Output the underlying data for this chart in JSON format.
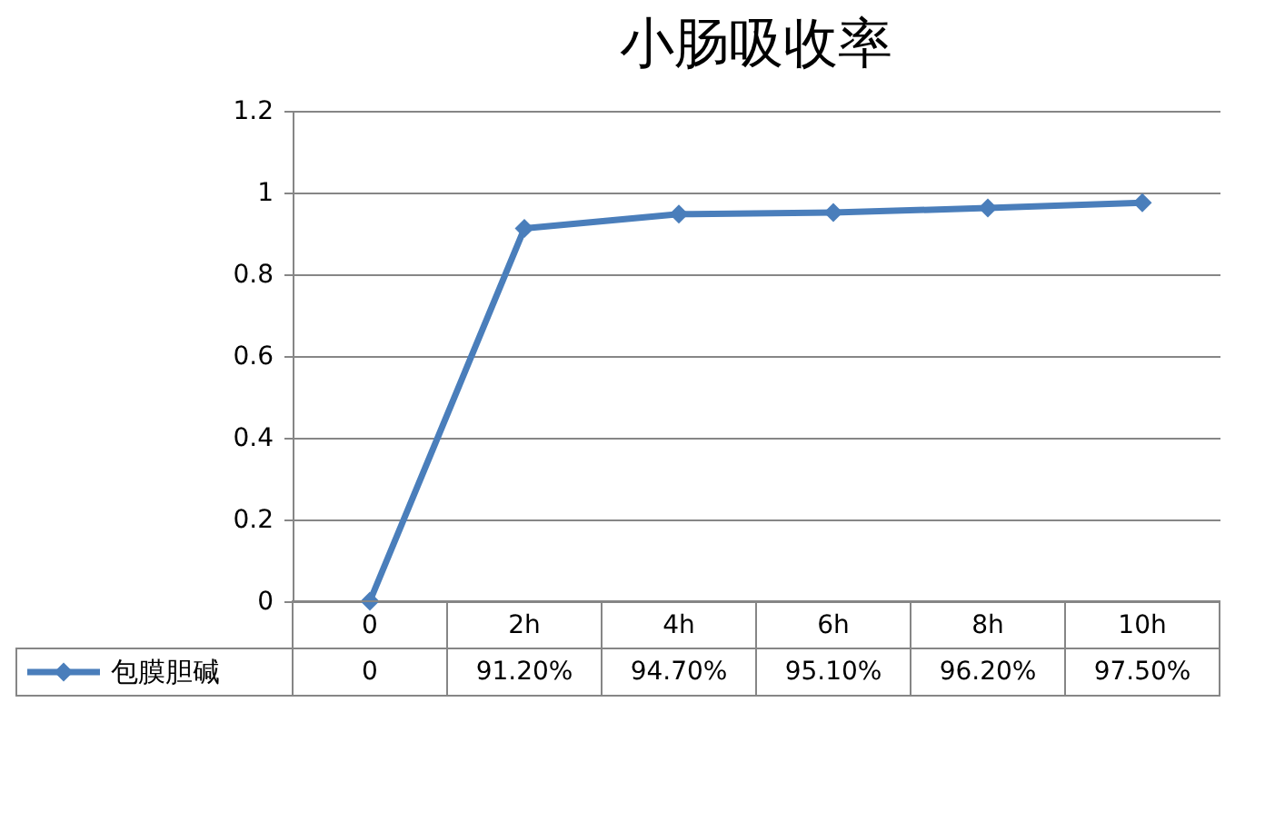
{
  "chart_data": {
    "type": "line",
    "title": "小肠吸收率",
    "categories": [
      "0",
      "2h",
      "4h",
      "6h",
      "8h",
      "10h"
    ],
    "series": [
      {
        "name": "包膜胆碱",
        "color": "#4a7ebb",
        "values": [
          0,
          0.912,
          0.947,
          0.951,
          0.962,
          0.975
        ],
        "value_labels": [
          "0",
          "91.20%",
          "94.70%",
          "95.10%",
          "96.20%",
          "97.50%"
        ]
      }
    ],
    "ylim": [
      0,
      1.2
    ],
    "yticks": [
      0,
      0.2,
      0.4,
      0.6,
      0.8,
      1,
      1.2
    ],
    "grid": "y",
    "legend": "bottom",
    "marker": "diamond",
    "line_style": "solid"
  }
}
